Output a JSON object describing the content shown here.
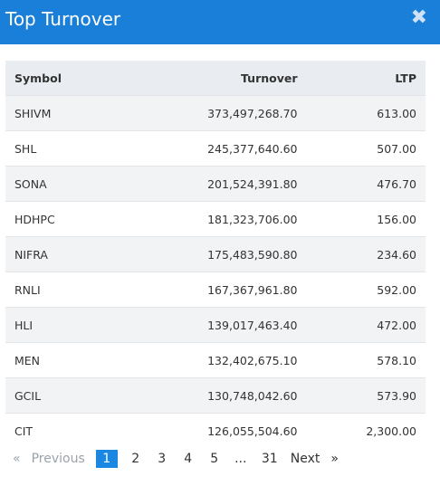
{
  "title": "Top Turnover",
  "close_label": "✖",
  "headers": {
    "symbol": "Symbol",
    "turnover": "Turnover",
    "ltp": "LTP"
  },
  "rows": [
    {
      "symbol": "SHIVM",
      "turnover": "373,497,268.70",
      "ltp": "613.00"
    },
    {
      "symbol": "SHL",
      "turnover": "245,377,640.60",
      "ltp": "507.00"
    },
    {
      "symbol": "SONA",
      "turnover": "201,524,391.80",
      "ltp": "476.70"
    },
    {
      "symbol": "HDHPC",
      "turnover": "181,323,706.00",
      "ltp": "156.00"
    },
    {
      "symbol": "NIFRA",
      "turnover": "175,483,590.80",
      "ltp": "234.60"
    },
    {
      "symbol": "RNLI",
      "turnover": "167,367,961.80",
      "ltp": "592.00"
    },
    {
      "symbol": "HLI",
      "turnover": "139,017,463.40",
      "ltp": "472.00"
    },
    {
      "symbol": "MEN",
      "turnover": "132,402,675.10",
      "ltp": "578.10"
    },
    {
      "symbol": "GCIL",
      "turnover": "130,748,042.60",
      "ltp": "573.90"
    },
    {
      "symbol": "CIT",
      "turnover": "126,055,504.60",
      "ltp": "2,300.00"
    }
  ],
  "pagination": {
    "first": "«",
    "previous": "Previous",
    "pages": [
      "1",
      "2",
      "3",
      "4",
      "5",
      "...",
      "31"
    ],
    "active_page": "1",
    "next": "Next",
    "last": "»"
  },
  "colors": {
    "header_bg": "#1a7fd8",
    "active_page": "#1a88e3"
  }
}
